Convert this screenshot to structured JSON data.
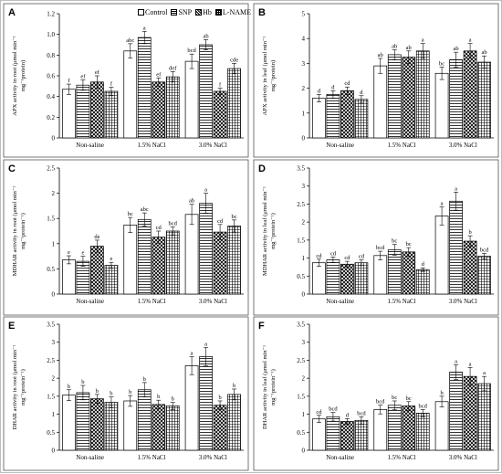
{
  "legend": {
    "items": [
      {
        "label": "Control",
        "pattern": "empty"
      },
      {
        "label": "SNP",
        "pattern": "horizontal-lines"
      },
      {
        "label": "Hb",
        "pattern": "diagonal-cross"
      },
      {
        "label": "L-NAME",
        "pattern": "grid"
      }
    ]
  },
  "groups": [
    "Non-saline",
    "1.5% NaCl",
    "3.0% NaCl"
  ],
  "chart_data": [
    {
      "type": "bar",
      "panel_letter": "A",
      "ylabel_lines": [
        "APX activity in root (μmol min⁻¹",
        "mg⁻¹protein)"
      ],
      "ylim": [
        0,
        1.2
      ],
      "yticks": [
        0,
        0.2,
        0.4,
        0.6,
        0.8,
        1.0,
        1.2
      ],
      "tick_decimals": 1,
      "tick_labels": [
        "0",
        "0.2",
        "0.4",
        "0.6",
        "0.8",
        "1.0",
        "1.2"
      ],
      "categories": [
        "Non-saline",
        "1.5% NaCl",
        "3.0% NaCl"
      ],
      "series": [
        {
          "name": "Control",
          "values": [
            0.47,
            0.84,
            0.74
          ],
          "errors": [
            0.05,
            0.07,
            0.07
          ],
          "letters": [
            "f",
            "abc",
            "bcd"
          ]
        },
        {
          "name": "SNP",
          "values": [
            0.51,
            0.97,
            0.9
          ],
          "errors": [
            0.05,
            0.06,
            0.05
          ],
          "letters": [
            "ef",
            "a",
            "ab"
          ]
        },
        {
          "name": "Hb",
          "values": [
            0.54,
            0.54,
            0.45
          ],
          "errors": [
            0.06,
            0.04,
            0.03
          ],
          "letters": [
            "ef",
            "ef",
            "f"
          ]
        },
        {
          "name": "L-NAME",
          "values": [
            0.45,
            0.59,
            0.67
          ],
          "errors": [
            0.04,
            0.05,
            0.05
          ],
          "letters": [
            "f",
            "def",
            "cde"
          ]
        }
      ]
    },
    {
      "type": "bar",
      "panel_letter": "B",
      "ylabel_lines": [
        "APX activity in leaf (μmol min⁻¹",
        "mg⁻¹protein)"
      ],
      "ylim": [
        0,
        5
      ],
      "yticks": [
        0,
        1,
        2,
        3,
        4,
        5
      ],
      "tick_decimals": 0,
      "tick_labels": [
        "0",
        "1",
        "2",
        "3",
        "4",
        "5"
      ],
      "categories": [
        "Non-saline",
        "1.5% NaCl",
        "3.0% NaCl"
      ],
      "series": [
        {
          "name": "Control",
          "values": [
            1.6,
            2.9,
            2.6
          ],
          "errors": [
            0.15,
            0.3,
            0.25
          ],
          "letters": [
            "d",
            "ab",
            "bc"
          ]
        },
        {
          "name": "SNP",
          "values": [
            1.75,
            3.35,
            3.15
          ],
          "errors": [
            0.15,
            0.2,
            0.3
          ],
          "letters": [
            "d",
            "ab",
            "ab"
          ]
        },
        {
          "name": "Hb",
          "values": [
            1.9,
            3.25,
            3.5
          ],
          "errors": [
            0.15,
            0.25,
            0.3
          ],
          "letters": [
            "cd",
            "ab",
            "a"
          ]
        },
        {
          "name": "L-NAME",
          "values": [
            1.55,
            3.5,
            3.05
          ],
          "errors": [
            0.15,
            0.3,
            0.25
          ],
          "letters": [
            "d",
            "a",
            "ab"
          ]
        }
      ]
    },
    {
      "type": "bar",
      "panel_letter": "C",
      "ylabel_lines": [
        "MDHAR activity in root (μmol min⁻¹",
        "mg⁻¹protein⁻¹)"
      ],
      "ylim": [
        0,
        2.5
      ],
      "yticks": [
        0,
        0.5,
        1.0,
        1.5,
        2.0,
        2.5
      ],
      "tick_decimals": 1,
      "tick_labels": [
        "0",
        "0.5",
        "1",
        "1.5",
        "2",
        "2.5"
      ],
      "categories": [
        "Non-saline",
        "1.5% NaCl",
        "3.0% NaCl"
      ],
      "series": [
        {
          "name": "Control",
          "values": [
            0.68,
            1.37,
            1.58
          ],
          "errors": [
            0.08,
            0.15,
            0.2
          ],
          "letters": [
            "e",
            "bc",
            "ab"
          ]
        },
        {
          "name": "SNP",
          "values": [
            0.65,
            1.48,
            1.8
          ],
          "errors": [
            0.1,
            0.13,
            0.2
          ],
          "letters": [
            "e",
            "abc",
            "a"
          ]
        },
        {
          "name": "Hb",
          "values": [
            0.95,
            1.13,
            1.23
          ],
          "errors": [
            0.12,
            0.12,
            0.15
          ],
          "letters": [
            "de",
            "cd",
            "cd"
          ]
        },
        {
          "name": "L-NAME",
          "values": [
            0.57,
            1.25,
            1.35
          ],
          "errors": [
            0.06,
            0.08,
            0.12
          ],
          "letters": [
            "e",
            "bcd",
            "bc"
          ]
        }
      ]
    },
    {
      "type": "bar",
      "panel_letter": "D",
      "ylabel_lines": [
        "MDHAR activity in leaf (μmol min⁻¹",
        "mg⁻¹protein⁻¹)"
      ],
      "ylim": [
        0,
        3.5
      ],
      "yticks": [
        0,
        0.5,
        1.0,
        1.5,
        2.0,
        2.5,
        3.0,
        3.5
      ],
      "tick_decimals": 1,
      "tick_labels": [
        "0",
        "0.5",
        "1",
        "1.5",
        "2",
        "2.5",
        "3",
        "3.5"
      ],
      "categories": [
        "Non-saline",
        "1.5% NaCl",
        "3.0% NaCl"
      ],
      "series": [
        {
          "name": "Control",
          "values": [
            0.87,
            1.07,
            2.17
          ],
          "errors": [
            0.1,
            0.12,
            0.25
          ],
          "letters": [
            "cd",
            "bcd",
            "a"
          ]
        },
        {
          "name": "SNP",
          "values": [
            0.95,
            1.23,
            2.58
          ],
          "errors": [
            0.08,
            0.15,
            0.25
          ],
          "letters": [
            "cd",
            "bc",
            "a"
          ]
        },
        {
          "name": "Hb",
          "values": [
            0.83,
            1.17,
            1.47
          ],
          "errors": [
            0.08,
            0.12,
            0.15
          ],
          "letters": [
            "cd",
            "bc",
            "b"
          ]
        },
        {
          "name": "L-NAME",
          "values": [
            0.87,
            0.68,
            1.05
          ],
          "errors": [
            0.08,
            0.05,
            0.08
          ],
          "letters": [
            "cd",
            "d",
            "bcd"
          ]
        }
      ]
    },
    {
      "type": "bar",
      "panel_letter": "E",
      "ylabel_lines": [
        "DHAR activity in root (μmol min⁻¹",
        "mg⁻¹protein⁻¹)"
      ],
      "ylim": [
        0,
        3.5
      ],
      "yticks": [
        0,
        0.5,
        1.0,
        1.5,
        2.0,
        2.5,
        3.0,
        3.5
      ],
      "tick_decimals": 1,
      "tick_labels": [
        "0",
        "0.5",
        "1",
        "1.5",
        "2",
        "2.5",
        "3",
        "3.5"
      ],
      "categories": [
        "Non-saline",
        "1.5% NaCl",
        "3.0% NaCl"
      ],
      "series": [
        {
          "name": "Control",
          "values": [
            1.53,
            1.37,
            2.35
          ],
          "errors": [
            0.15,
            0.15,
            0.25
          ],
          "letters": [
            "b",
            "b",
            "a"
          ]
        },
        {
          "name": "SNP",
          "values": [
            1.6,
            1.68,
            2.6
          ],
          "errors": [
            0.2,
            0.2,
            0.25
          ],
          "letters": [
            "b",
            "b",
            "a"
          ]
        },
        {
          "name": "Hb",
          "values": [
            1.43,
            1.27,
            1.25
          ],
          "errors": [
            0.12,
            0.12,
            0.12
          ],
          "letters": [
            "b",
            "b",
            "b"
          ]
        },
        {
          "name": "L-NAME",
          "values": [
            1.33,
            1.23,
            1.55
          ],
          "errors": [
            0.15,
            0.1,
            0.15
          ],
          "letters": [
            "b",
            "b",
            "b"
          ]
        }
      ]
    },
    {
      "type": "bar",
      "panel_letter": "F",
      "ylabel_lines": [
        "DHAR activity in leaf (μmol min⁻¹",
        "mg⁻¹protein⁻¹)"
      ],
      "ylim": [
        0,
        3.5
      ],
      "yticks": [
        0,
        0.5,
        1.0,
        1.5,
        2.0,
        2.5,
        3.0,
        3.5
      ],
      "tick_decimals": 1,
      "tick_labels": [
        "0",
        "0.5",
        "1",
        "1.5",
        "2",
        "2.5",
        "3",
        "3.5"
      ],
      "categories": [
        "Non-saline",
        "1.5% NaCl",
        "3.0% NaCl"
      ],
      "series": [
        {
          "name": "Control",
          "values": [
            0.87,
            1.13,
            1.35
          ],
          "errors": [
            0.1,
            0.12,
            0.15
          ],
          "letters": [
            "cd",
            "bcd",
            "b"
          ]
        },
        {
          "name": "SNP",
          "values": [
            0.93,
            1.25,
            2.17
          ],
          "errors": [
            0.12,
            0.12,
            0.2
          ],
          "letters": [
            "bcd",
            "bc",
            "a"
          ]
        },
        {
          "name": "Hb",
          "values": [
            0.8,
            1.23,
            2.05
          ],
          "errors": [
            0.08,
            0.12,
            0.25
          ],
          "letters": [
            "d",
            "bc",
            "a"
          ]
        },
        {
          "name": "L-NAME",
          "values": [
            0.83,
            1.03,
            1.85
          ],
          "errors": [
            0.1,
            0.1,
            0.2
          ],
          "letters": [
            "bcd",
            "bcd",
            "a"
          ]
        }
      ]
    }
  ]
}
